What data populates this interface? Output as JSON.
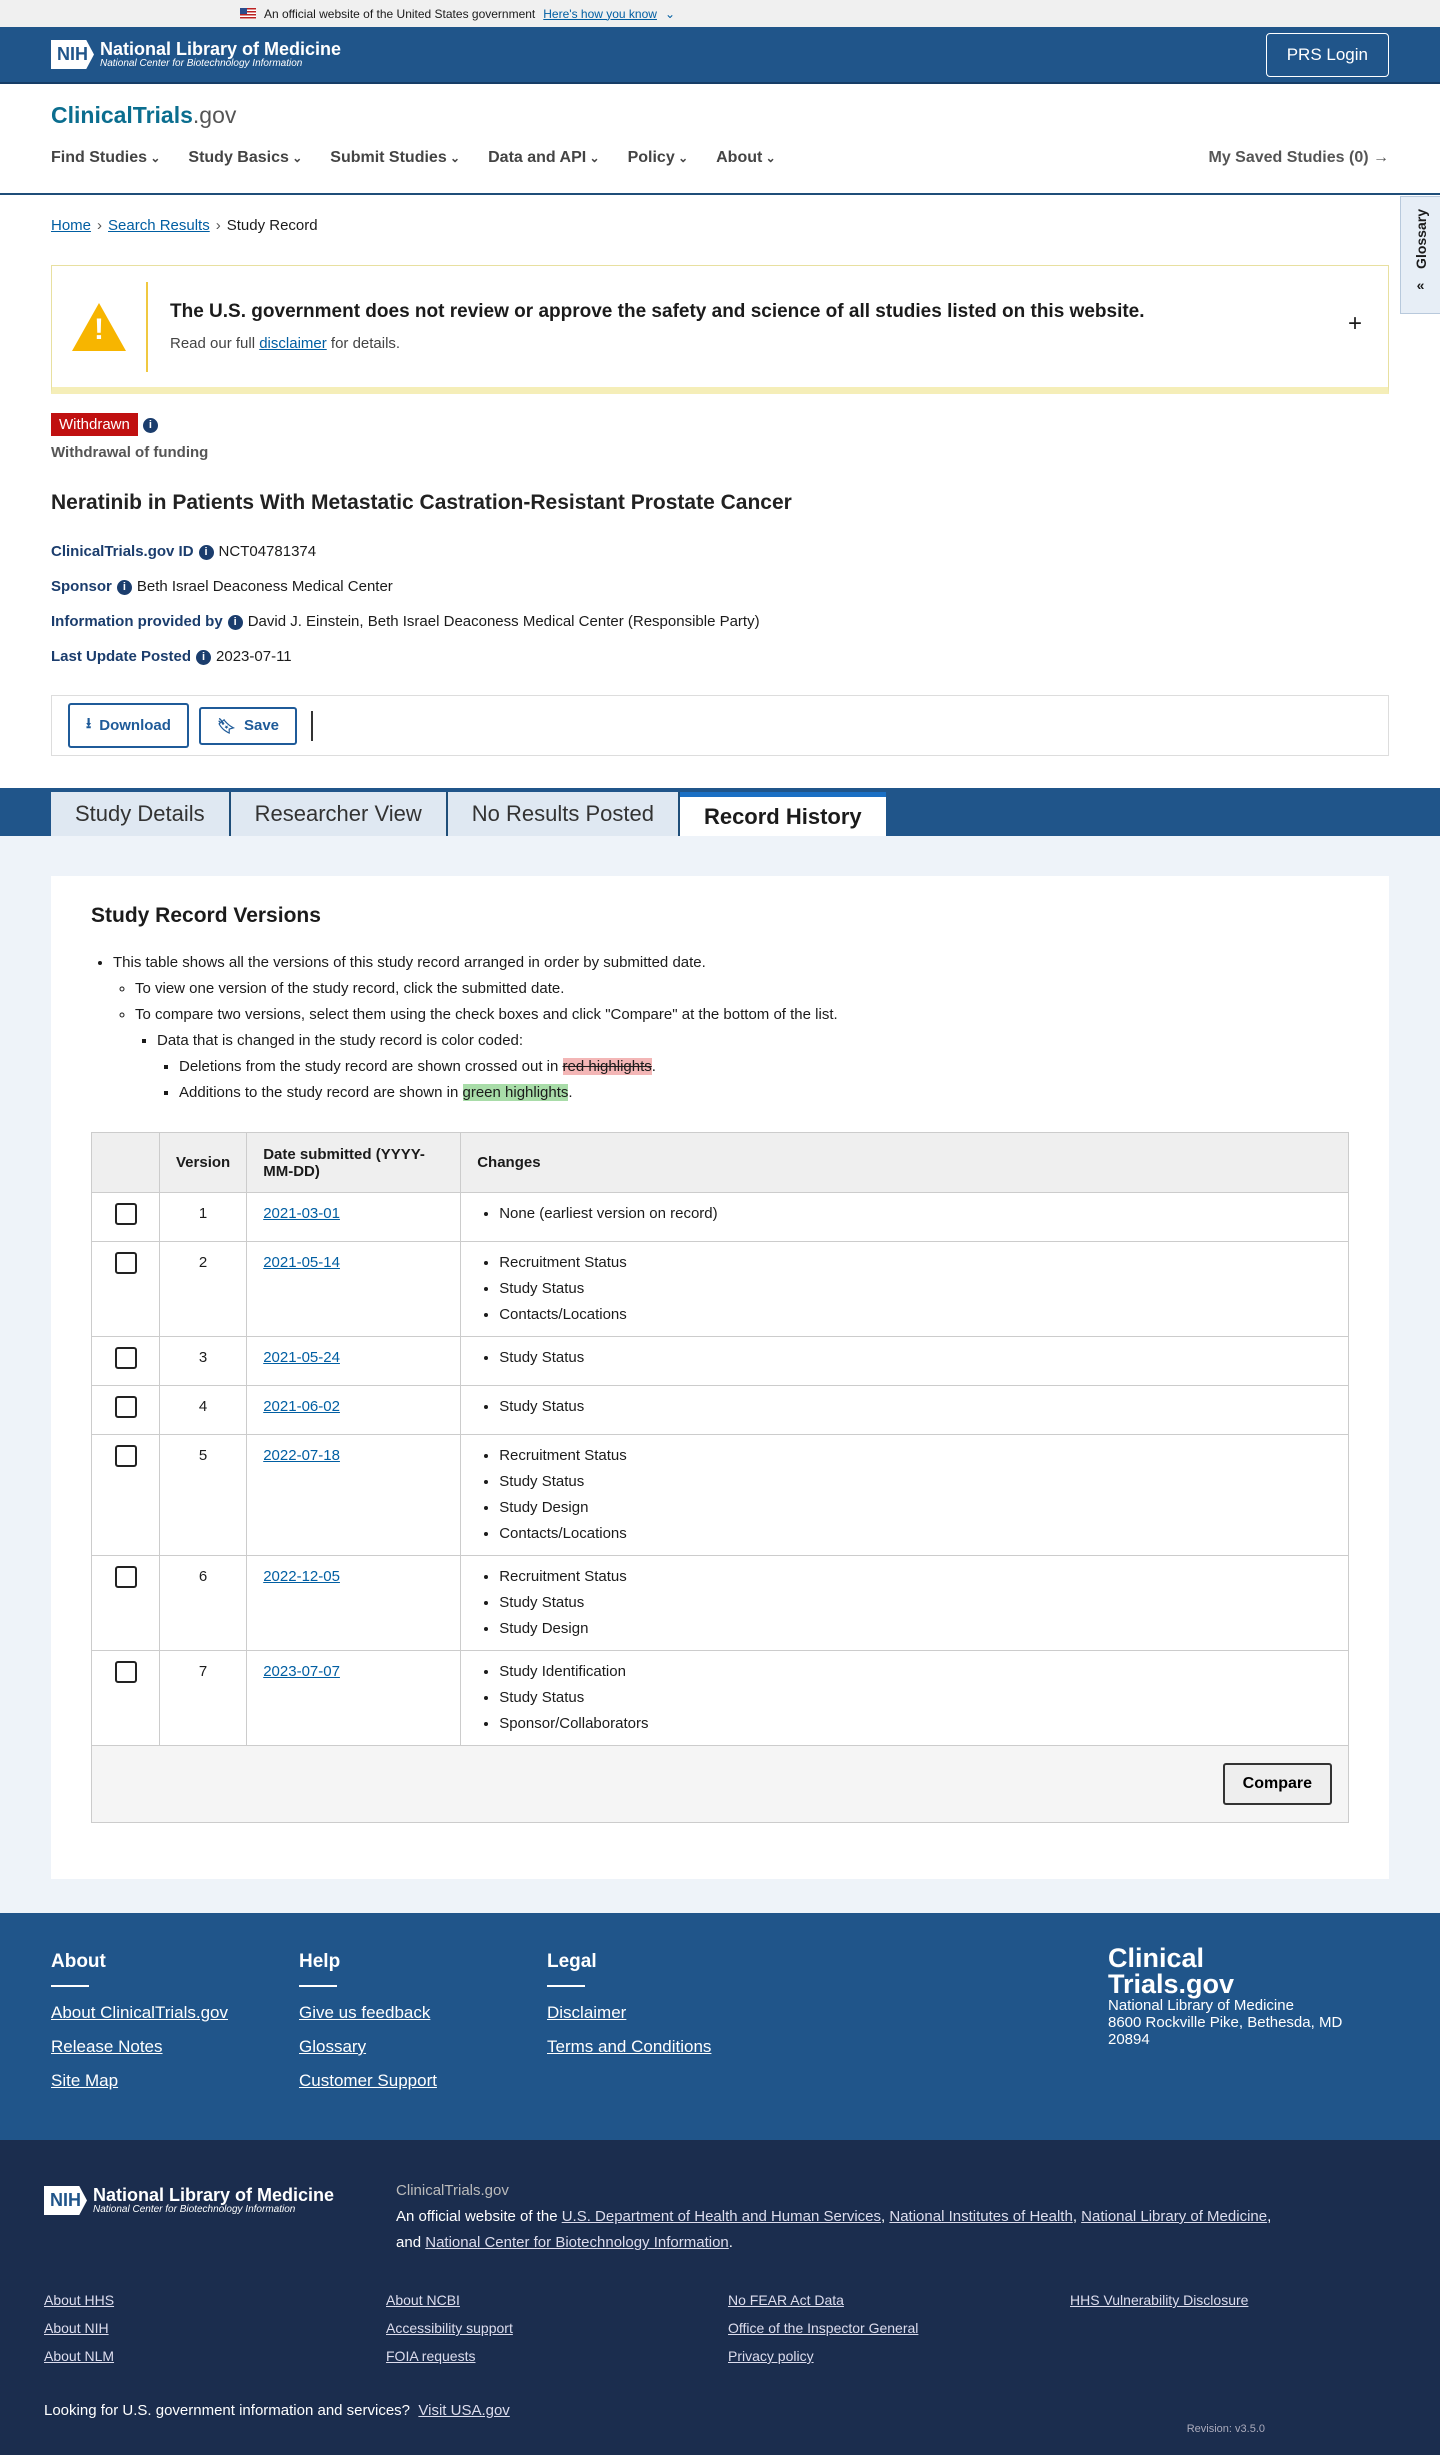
{
  "gov_banner": {
    "text": "An official website of the United States government",
    "link": "Here's how you know"
  },
  "header": {
    "nih_box": "NIH",
    "nlm_name": "National Library of Medicine",
    "nlm_sub": "National Center for Biotechnology Information",
    "login": "PRS Login"
  },
  "brand": {
    "main": "ClinicalTrials",
    "suffix": ".gov"
  },
  "nav": {
    "items": [
      "Find Studies",
      "Study Basics",
      "Submit Studies",
      "Data and API",
      "Policy",
      "About"
    ],
    "saved": "My Saved Studies (0)"
  },
  "glossary": "Glossary",
  "breadcrumb": [
    "Home",
    "Search Results",
    "Study Record"
  ],
  "warning": {
    "title": "The U.S. government does not review or approve the safety and science of all studies listed on this website.",
    "pre": "Read our full ",
    "link": "disclaimer",
    "post": " for details."
  },
  "study": {
    "status": "Withdrawn",
    "status_color": "#c01010",
    "reason": "Withdrawal of funding",
    "title": "Neratinib in Patients With Metastatic Castration-Resistant Prostate Cancer",
    "meta": [
      {
        "label": "ClinicalTrials.gov ID",
        "value": "NCT04781374"
      },
      {
        "label": "Sponsor",
        "value": "Beth Israel Deaconess Medical Center"
      },
      {
        "label": "Information provided by",
        "value": "David J. Einstein, Beth Israel Deaconess Medical Center (Responsible Party)"
      },
      {
        "label": "Last Update Posted",
        "value": "2023-07-11"
      }
    ]
  },
  "actions": {
    "download": "Download",
    "save": "Save"
  },
  "tabs": [
    {
      "label": "Study Details"
    },
    {
      "label": "Researcher View"
    },
    {
      "label": "No Results Posted"
    },
    {
      "label": "Record History",
      "active": true
    }
  ],
  "versions": {
    "heading": "Study Record Versions",
    "intro": "This table shows all the versions of this study record arranged in order by submitted date.",
    "view": "To view one version of the study record, click the submitted date.",
    "compare": "To compare two versions, select them using the check boxes and click \"Compare\" at the bottom of the list.",
    "coded": "Data that is changed in the study record is color coded:",
    "del_pre": "Deletions from the study record are shown crossed out in ",
    "del_hl": "red highlights",
    "add_pre": "Additions to the study record are shown in ",
    "add_hl": "green highlights",
    "dot": ".",
    "columns": [
      "",
      "Version",
      "Date submitted (YYYY-MM-DD)",
      "Changes"
    ],
    "rows": [
      {
        "version": "1",
        "date": "2021-03-01",
        "changes": [
          "None (earliest version on record)"
        ]
      },
      {
        "version": "2",
        "date": "2021-05-14",
        "changes": [
          "Recruitment Status",
          "Study Status",
          "Contacts/Locations"
        ]
      },
      {
        "version": "3",
        "date": "2021-05-24",
        "changes": [
          "Study Status"
        ]
      },
      {
        "version": "4",
        "date": "2021-06-02",
        "changes": [
          "Study Status"
        ]
      },
      {
        "version": "5",
        "date": "2022-07-18",
        "changes": [
          "Recruitment Status",
          "Study Status",
          "Study Design",
          "Contacts/Locations"
        ]
      },
      {
        "version": "6",
        "date": "2022-12-05",
        "changes": [
          "Recruitment Status",
          "Study Status",
          "Study Design"
        ]
      },
      {
        "version": "7",
        "date": "2023-07-07",
        "changes": [
          "Study Identification",
          "Study Status",
          "Sponsor/Collaborators"
        ]
      }
    ],
    "compare_button": "Compare"
  },
  "footer": {
    "cols": [
      {
        "title": "About",
        "links": [
          "About ClinicalTrials.gov",
          "Release Notes",
          "Site Map"
        ]
      },
      {
        "title": "Help",
        "links": [
          "Give us feedback",
          "Glossary",
          "Customer Support"
        ]
      },
      {
        "title": "Legal",
        "links": [
          "Disclaimer",
          "Terms and Conditions"
        ]
      }
    ],
    "logo": "Clinical Trials.gov",
    "address": [
      "National Library of Medicine",
      "8600 Rockville Pike, Bethesda, MD",
      "20894"
    ]
  },
  "footer2": {
    "site": "ClinicalTrials.gov",
    "pre": "An official website of the ",
    "l1": "U.S. Department of Health and Human Services",
    "l2": "National Institutes of Health",
    "l3": "National Library of Medicine",
    "and": "and ",
    "l4": "National Center for Biotechnology Information",
    "links": [
      "About HHS",
      "About NCBI",
      "No FEAR Act Data",
      "HHS Vulnerability Disclosure",
      "About NIH",
      "Accessibility support",
      "Office of the Inspector General",
      "",
      "About NLM",
      "FOIA requests",
      "Privacy policy",
      ""
    ],
    "usa_q": "Looking for U.S. government information and services?",
    "usa_link": "Visit USA.gov",
    "revision": "Revision: v3.5.0"
  }
}
